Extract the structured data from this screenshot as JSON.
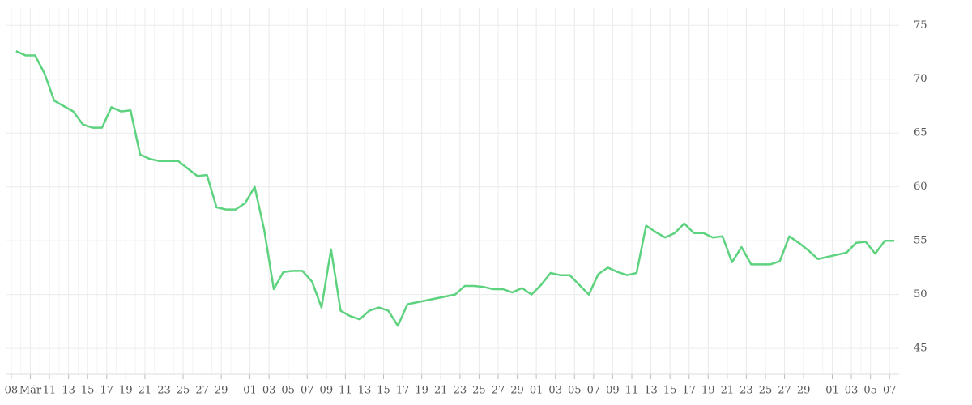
{
  "chart_data": {
    "type": "line",
    "xlim": [
      -1,
      92.5
    ],
    "xticks": [
      {
        "value": -0.5,
        "label": "08"
      },
      {
        "value": 1.5,
        "label": "Mär"
      },
      {
        "value": 3.5,
        "label": "11"
      },
      {
        "value": 5.5,
        "label": "13"
      },
      {
        "value": 7.5,
        "label": "15"
      },
      {
        "value": 9.5,
        "label": "17"
      },
      {
        "value": 11.5,
        "label": "19"
      },
      {
        "value": 13.5,
        "label": "21"
      },
      {
        "value": 15.5,
        "label": "23"
      },
      {
        "value": 17.5,
        "label": "25"
      },
      {
        "value": 19.5,
        "label": "27"
      },
      {
        "value": 21.5,
        "label": "29"
      },
      {
        "value": 24.5,
        "label": "01"
      },
      {
        "value": 26.5,
        "label": "03"
      },
      {
        "value": 28.5,
        "label": "05"
      },
      {
        "value": 30.5,
        "label": "07"
      },
      {
        "value": 32.5,
        "label": "09"
      },
      {
        "value": 34.5,
        "label": "11"
      },
      {
        "value": 36.5,
        "label": "13"
      },
      {
        "value": 38.5,
        "label": "15"
      },
      {
        "value": 40.5,
        "label": "17"
      },
      {
        "value": 42.5,
        "label": "19"
      },
      {
        "value": 44.5,
        "label": "21"
      },
      {
        "value": 46.5,
        "label": "23"
      },
      {
        "value": 48.5,
        "label": "25"
      },
      {
        "value": 50.5,
        "label": "27"
      },
      {
        "value": 52.5,
        "label": "29"
      },
      {
        "value": 54.5,
        "label": "01"
      },
      {
        "value": 56.5,
        "label": "03"
      },
      {
        "value": 58.5,
        "label": "05"
      },
      {
        "value": 60.5,
        "label": "07"
      },
      {
        "value": 62.5,
        "label": "09"
      },
      {
        "value": 64.5,
        "label": "11"
      },
      {
        "value": 66.5,
        "label": "13"
      },
      {
        "value": 68.5,
        "label": "15"
      },
      {
        "value": 70.5,
        "label": "17"
      },
      {
        "value": 72.5,
        "label": "19"
      },
      {
        "value": 74.5,
        "label": "21"
      },
      {
        "value": 76.5,
        "label": "23"
      },
      {
        "value": 78.5,
        "label": "25"
      },
      {
        "value": 80.5,
        "label": "27"
      },
      {
        "value": 82.5,
        "label": "29"
      },
      {
        "value": 85.5,
        "label": "01"
      },
      {
        "value": 87.5,
        "label": "03"
      },
      {
        "value": 89.5,
        "label": "05"
      },
      {
        "value": 91.5,
        "label": "07"
      }
    ],
    "ylim": [
      42.6,
      76.6
    ],
    "yticks": [
      45,
      50,
      55,
      60,
      65,
      70,
      75
    ],
    "grid": true,
    "series": [
      {
        "color": "#5dd27f",
        "x": [
          0,
          1,
          2,
          3,
          4,
          5,
          6,
          7,
          8,
          9,
          10,
          11,
          12,
          13,
          14,
          15,
          16,
          17,
          18,
          19,
          20,
          21,
          22,
          23,
          24,
          25,
          26,
          27,
          28,
          29,
          30,
          31,
          32,
          33,
          34,
          35,
          36,
          37,
          38,
          39,
          40,
          41,
          46,
          47,
          48,
          49,
          50,
          51,
          52,
          53,
          54,
          55,
          56,
          57,
          58,
          59,
          60,
          61,
          62,
          63,
          64,
          65,
          66,
          67,
          68,
          69,
          70,
          71,
          72,
          73,
          74,
          75,
          76,
          77,
          78,
          79,
          80,
          81,
          82,
          83,
          84,
          87,
          88,
          89,
          90,
          91,
          92
        ],
        "values": [
          72.6,
          72.2,
          72.2,
          70.5,
          68.0,
          67.5,
          67.0,
          65.8,
          65.5,
          65.5,
          67.4,
          67.0,
          67.1,
          63.0,
          62.6,
          62.4,
          62.4,
          62.4,
          61.7,
          61.0,
          61.1,
          58.1,
          57.9,
          57.9,
          58.5,
          60.0,
          56.0,
          50.5,
          52.1,
          52.2,
          52.2,
          51.2,
          48.8,
          54.2,
          48.5,
          48.0,
          47.7,
          48.5,
          48.8,
          48.5,
          47.1,
          49.1,
          50.0,
          50.8,
          50.8,
          50.7,
          50.5,
          50.5,
          50.2,
          50.6,
          50.0,
          50.9,
          52.0,
          51.8,
          51.8,
          50.9,
          50.0,
          51.9,
          52.5,
          52.1,
          51.8,
          52.0,
          56.4,
          55.8,
          55.3,
          55.7,
          56.6,
          55.7,
          55.7,
          55.3,
          55.4,
          53.0,
          54.4,
          52.8,
          52.8,
          52.8,
          53.1,
          55.4,
          54.8,
          54.1,
          53.3,
          53.9,
          54.8,
          54.9,
          53.8,
          55.0,
          55.0
        ]
      }
    ]
  }
}
